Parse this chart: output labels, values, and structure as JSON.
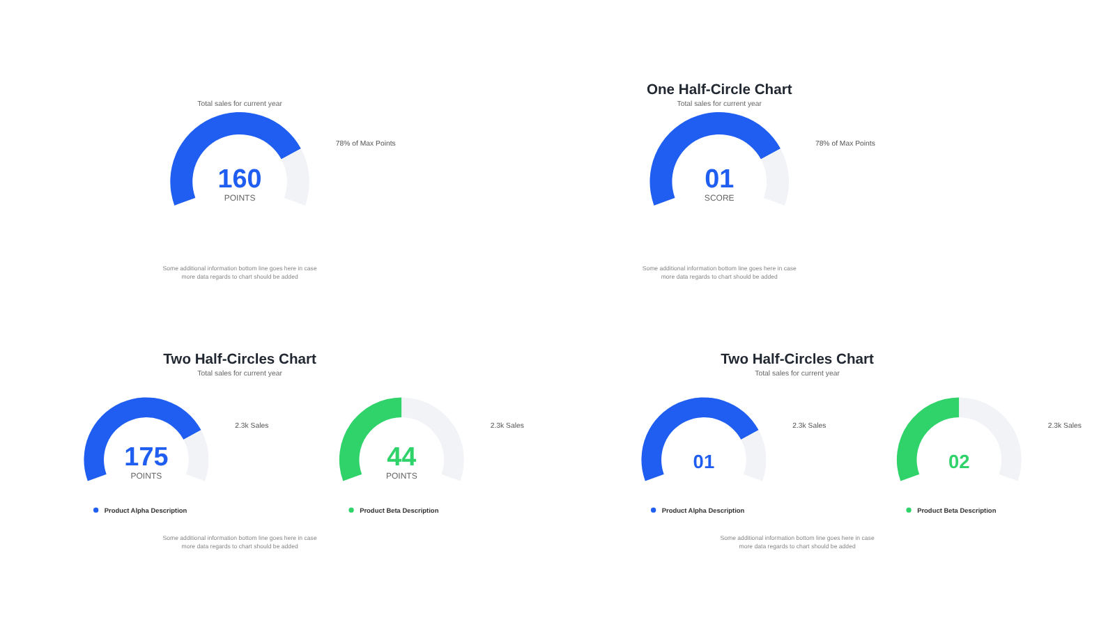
{
  "chart_data": [
    {
      "type": "donut",
      "subtitle": "Total sales for current year",
      "categories": [
        null,
        null
      ],
      "values": [
        78,
        22
      ],
      "colors": [
        "#1f5ef0",
        "#f1f3f7"
      ],
      "annotations": [
        "78% of Max Points",
        "160",
        "POINTS",
        "Some additional information bottom line goes here in case",
        "more data regards to chart should be added"
      ]
    },
    {
      "type": "donut",
      "title": "One Half-Circle Chart",
      "subtitle": "Total sales for current year",
      "categories": [
        null,
        null
      ],
      "values": [
        78,
        22
      ],
      "colors": [
        "#1f5ef0",
        "#f1f3f7"
      ],
      "annotations": [
        "78% of Max Points",
        "01",
        "SCORE",
        "Some additional information bottom line goes here in case",
        "more data regards to chart should be added"
      ]
    },
    {
      "type": "donut",
      "title": "Two Half-Circles Chart",
      "subtitle": "Total sales for current year",
      "categories": [
        "Product Alpha Description",
        null
      ],
      "values": [
        78,
        22
      ],
      "colors": [
        "#1f5ef0",
        "#f1f3f7"
      ],
      "legend": "bottom",
      "annotations": [
        "2.3k Sales",
        "175",
        "POINTS",
        "Some additional information bottom line goes here in case",
        "more data regards to chart should be added"
      ]
    },
    {
      "type": "donut",
      "categories": [
        "Product Beta Description",
        null
      ],
      "values": [
        50,
        50
      ],
      "colors": [
        "#2fd36a",
        "#f1f3f7"
      ],
      "legend": "bottom",
      "annotations": [
        "2.3k Sales",
        "44",
        "POINTS"
      ]
    },
    {
      "type": "donut",
      "title": "Two Half-Circles Chart",
      "subtitle": "Total sales for current year",
      "categories": [
        "Product Alpha Description",
        null
      ],
      "values": [
        78,
        22
      ],
      "colors": [
        "#1f5ef0",
        "#f1f3f7"
      ],
      "legend": "bottom",
      "annotations": [
        "2.3k Sales",
        "01",
        "Some additional information bottom line goes here in case",
        "more data regards to chart should be added"
      ]
    },
    {
      "type": "donut",
      "categories": [
        "Product Beta Description",
        null
      ],
      "values": [
        50,
        50
      ],
      "colors": [
        "#2fd36a",
        "#f1f3f7"
      ],
      "legend": "bottom",
      "annotations": [
        "2.3k Sales",
        "02"
      ]
    }
  ]
}
